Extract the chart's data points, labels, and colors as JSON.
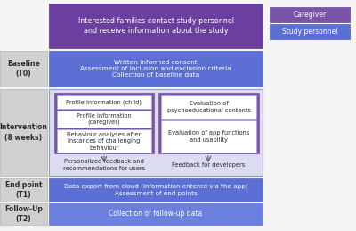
{
  "fig_bg": "#f5f5f5",
  "purple_dark": "#6b3fa0",
  "purple_medium": "#7855a8",
  "blue_medium": "#5b6fd4",
  "blue_light": "#6b7fdd",
  "lavender": "#dcdcf0",
  "lavender_border": "#9999bb",
  "gray_label": "#d0d0d0",
  "gray_label_border": "#bbbbbb",
  "white": "#ffffff",
  "white_border": "#aaaacc",
  "legend_caregiver_color": "#7855a8",
  "legend_study_color": "#5b6fd4",
  "top_box_text": "Interested families contact study personnel\nand receive information about the study",
  "baseline_label": "Baseline\n(T0)",
  "baseline_text": "Written informed consent\nAssessment of inclusion and exclusion criteria\nCollection of baseline data",
  "intervention_label": "Intervention\n(8 weeks)",
  "left_inner_box1": "Profile information (child)",
  "left_inner_box2": "Profile information\n(caregiver)",
  "left_inner_box3": "Behaviour analyses after\ninstances of challenging\nbehaviour",
  "right_inner_box1": "Evaluation of\npsychoeducational contents",
  "right_inner_box2": "Evaluation of app functions\nand usability",
  "left_bottom_text": "Personalized feedback and\nrecommendations for users",
  "right_bottom_text": "Feedback for developers",
  "endpoint_label": "End point\n(T1)",
  "endpoint_text": "Data export from cloud (information entered via the app)\nAssessment of end points",
  "followup_label": "Follow-Up\n(T2)",
  "followup_text": "Collection of follow-up data",
  "legend_caregiver": "Caregiver",
  "legend_study": "Study personnel",
  "dark_text": "#2a2a2a",
  "arrow_color": "#555566"
}
